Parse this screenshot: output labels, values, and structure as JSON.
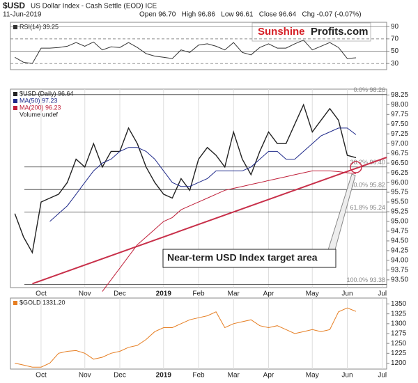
{
  "header": {
    "symbol": "$USD",
    "name": "US Dollar Index - Cash Settle (EOD) ICE",
    "date": "11-Jun-2019",
    "quote": "Open 96.70   High 96.86   Low 96.61   Close 96.64   Chg -0.07 (-0.07%)",
    "logo_a": "Sunshine",
    "logo_b": "Profits.com"
  },
  "chart_data": [
    {
      "type": "line",
      "title": "RSI(14) 39.25",
      "grid": true,
      "series": [
        {
          "name": "RSI(14)",
          "color": "#333333",
          "values": [
            40,
            32,
            30,
            55,
            55,
            56,
            58,
            64,
            58,
            65,
            52,
            57,
            56,
            64,
            56,
            46,
            42,
            40,
            38,
            52,
            48,
            60,
            62,
            58,
            52,
            64,
            48,
            44,
            56,
            62,
            55,
            55,
            62,
            68,
            52,
            58,
            64,
            56,
            38,
            39.25,
            null,
            null,
            null
          ]
        }
      ],
      "ylim": [
        20,
        97
      ],
      "yticks": [
        90,
        70,
        50,
        30
      ]
    },
    {
      "type": "line",
      "title": "$USD (Daily) 96.64",
      "extra_legend": "Volume undef",
      "grid": false,
      "categories": [
        null,
        null,
        null,
        "Oct",
        null,
        null,
        null,
        null,
        "Nov",
        null,
        null,
        null,
        "Dec",
        null,
        null,
        null,
        null,
        "2019",
        null,
        null,
        null,
        "Feb",
        null,
        null,
        null,
        "Mar",
        null,
        null,
        null,
        "Apr",
        null,
        null,
        null,
        null,
        "May",
        null,
        null,
        null,
        "Jun",
        null,
        null,
        null,
        "Jul"
      ],
      "series": [
        {
          "name": "$USD (Daily) 96.64",
          "color": "#222222",
          "values": [
            95.2,
            94.6,
            94.2,
            95.5,
            95.6,
            95.7,
            96.0,
            96.6,
            96.4,
            97.0,
            96.4,
            96.8,
            96.8,
            97.4,
            97.0,
            96.4,
            96.0,
            95.7,
            95.6,
            96.1,
            95.8,
            96.6,
            96.9,
            96.7,
            96.4,
            97.3,
            96.6,
            96.2,
            96.8,
            97.3,
            97.0,
            97.0,
            97.5,
            98.0,
            97.3,
            97.6,
            97.9,
            97.6,
            96.7,
            96.64,
            null,
            null,
            null
          ]
        },
        {
          "name": "MA(50) 97.23",
          "color": "#1f2a8a",
          "values": [
            null,
            null,
            null,
            null,
            95.0,
            95.2,
            95.4,
            95.7,
            96.0,
            96.3,
            96.5,
            96.6,
            96.8,
            96.9,
            96.9,
            96.8,
            96.6,
            96.3,
            96.0,
            95.9,
            95.9,
            96.0,
            96.1,
            96.3,
            96.3,
            96.3,
            96.3,
            96.4,
            96.6,
            96.8,
            96.8,
            96.6,
            96.6,
            96.8,
            97.0,
            97.2,
            97.3,
            97.4,
            97.4,
            97.23,
            null,
            null,
            null
          ]
        },
        {
          "name": "MA(200) 96.23",
          "color": "#c0203a",
          "values": [
            null,
            null,
            null,
            null,
            null,
            null,
            null,
            null,
            null,
            null,
            93.2,
            93.5,
            93.8,
            94.1,
            94.4,
            94.6,
            94.8,
            95.0,
            95.1,
            95.3,
            95.4,
            95.5,
            95.6,
            95.7,
            95.8,
            95.85,
            95.9,
            95.95,
            96.0,
            96.05,
            96.1,
            96.15,
            96.2,
            96.25,
            96.3,
            96.3,
            96.3,
            96.28,
            96.25,
            96.23,
            null,
            null,
            null
          ]
        }
      ],
      "levels": [
        {
          "value": 98.26,
          "label": "0.0% 98.26"
        },
        {
          "value": 96.4,
          "label": "38.2% 96.40"
        },
        {
          "value": 95.82,
          "label": "50.0% 95.82"
        },
        {
          "value": 95.24,
          "label": "61.8% 95.24"
        },
        {
          "value": 93.38,
          "label": "100.0% 93.38"
        }
      ],
      "annotation": "Near-term USD Index target area",
      "ylim": [
        93.3,
        98.4
      ],
      "yticks": [
        {
          "value": 93.5,
          "label": "93.50"
        },
        {
          "value": 93.75,
          "label": "93.75"
        },
        {
          "value": 94,
          "label": "94.00"
        },
        {
          "value": 94.25,
          "label": "94.25"
        },
        {
          "value": 94.5,
          "label": "94.50"
        },
        {
          "value": 94.75,
          "label": "94.75"
        },
        {
          "value": 95,
          "label": "95.00"
        },
        {
          "value": 95.25,
          "label": "95.25"
        },
        {
          "value": 95.5,
          "label": "95.50"
        },
        {
          "value": 95.75,
          "label": "95.75"
        },
        {
          "value": 96,
          "label": "96.00"
        },
        {
          "value": 96.25,
          "label": "96.25"
        },
        {
          "value": 96.5,
          "label": "96.50"
        },
        {
          "value": 96.75,
          "label": "96.75"
        },
        {
          "value": 97,
          "label": "97.00"
        },
        {
          "value": 97.25,
          "label": "97.25"
        },
        {
          "value": 97.5,
          "label": "97.50"
        },
        {
          "value": 97.75,
          "label": "97.75"
        },
        {
          "value": 98,
          "label": "98.00"
        },
        {
          "value": 98.25,
          "label": "98.25"
        }
      ]
    },
    {
      "type": "line",
      "title": "$GOLD 1331.20",
      "grid": false,
      "categories": [
        null,
        null,
        null,
        "Oct",
        null,
        null,
        null,
        null,
        "Nov",
        null,
        null,
        null,
        "Dec",
        null,
        null,
        null,
        null,
        "2019",
        null,
        null,
        null,
        "Feb",
        null,
        null,
        null,
        "Mar",
        null,
        null,
        null,
        "Apr",
        null,
        null,
        null,
        null,
        "May",
        null,
        null,
        null,
        "Jun",
        null,
        null,
        null,
        "Jul"
      ],
      "series": [
        {
          "name": "$GOLD",
          "color": "#e67e22",
          "values": [
            1200,
            1195,
            1190,
            1190,
            1200,
            1225,
            1230,
            1232,
            1225,
            1210,
            1215,
            1225,
            1230,
            1240,
            1245,
            1260,
            1280,
            1290,
            1290,
            1300,
            1310,
            1315,
            1320,
            1330,
            1290,
            1300,
            1305,
            1310,
            1295,
            1290,
            1295,
            1285,
            1275,
            1280,
            1285,
            1280,
            1285,
            1330,
            1340,
            1331.2,
            null,
            null,
            null
          ]
        }
      ],
      "ylim": [
        1185,
        1365
      ],
      "yticks": [
        1200,
        1225,
        1250,
        1275,
        1300,
        1325,
        1350
      ]
    }
  ]
}
